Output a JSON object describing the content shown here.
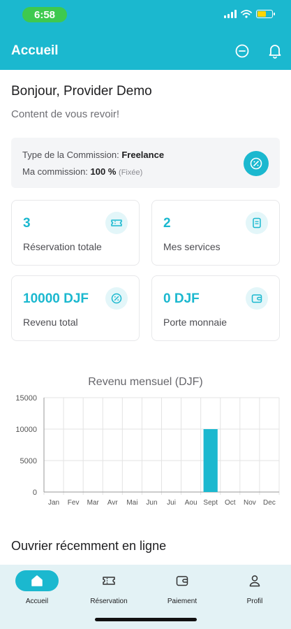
{
  "status_bar": {
    "time": "6:58"
  },
  "app_bar": {
    "title": "Accueil",
    "icons": [
      "chat-icon",
      "bell-icon"
    ]
  },
  "greeting": {
    "title": "Bonjour, Provider Demo",
    "subtitle": "Content de vous revoir!"
  },
  "commission": {
    "type_label": "Type de la Commission: ",
    "type_value": "Freelance",
    "rate_label": "Ma commission: ",
    "rate_value": "100 %",
    "rate_note": "(Fixée)",
    "icon": "percent-badge-icon"
  },
  "stats": [
    {
      "value": "3",
      "label": "Réservation totale",
      "icon": "ticket-icon"
    },
    {
      "value": "2",
      "label": "Mes services",
      "icon": "document-icon"
    },
    {
      "value": "10000 DJF",
      "label": "Revenu total",
      "icon": "percent-badge-icon"
    },
    {
      "value": "0 DJF",
      "label": "Porte monnaie",
      "icon": "wallet-icon"
    }
  ],
  "chart_data": {
    "type": "bar",
    "title": "Revenu mensuel (DJF)",
    "categories": [
      "Jan",
      "Fev",
      "Mar",
      "Avr",
      "Mai",
      "Jun",
      "Jui",
      "Aou",
      "Sept",
      "Oct",
      "Nov",
      "Dec"
    ],
    "values": [
      0,
      0,
      0,
      0,
      0,
      0,
      0,
      0,
      10000,
      0,
      0,
      0
    ],
    "yticks": [
      0,
      5000,
      10000,
      15000
    ],
    "ylim": [
      0,
      15000
    ],
    "grid": true,
    "bar_color": "#1bb8cf"
  },
  "section": {
    "title": "Ouvrier récemment en ligne"
  },
  "bottom_nav": [
    {
      "label": "Accueil",
      "icon": "home-icon",
      "active": true
    },
    {
      "label": "Réservation",
      "icon": "ticket-icon",
      "active": false
    },
    {
      "label": "Paiement",
      "icon": "wallet-icon",
      "active": false
    },
    {
      "label": "Profil",
      "icon": "person-icon",
      "active": false
    }
  ],
  "colors": {
    "primary": "#1bb8cf",
    "status_pill": "#3ec94f"
  }
}
